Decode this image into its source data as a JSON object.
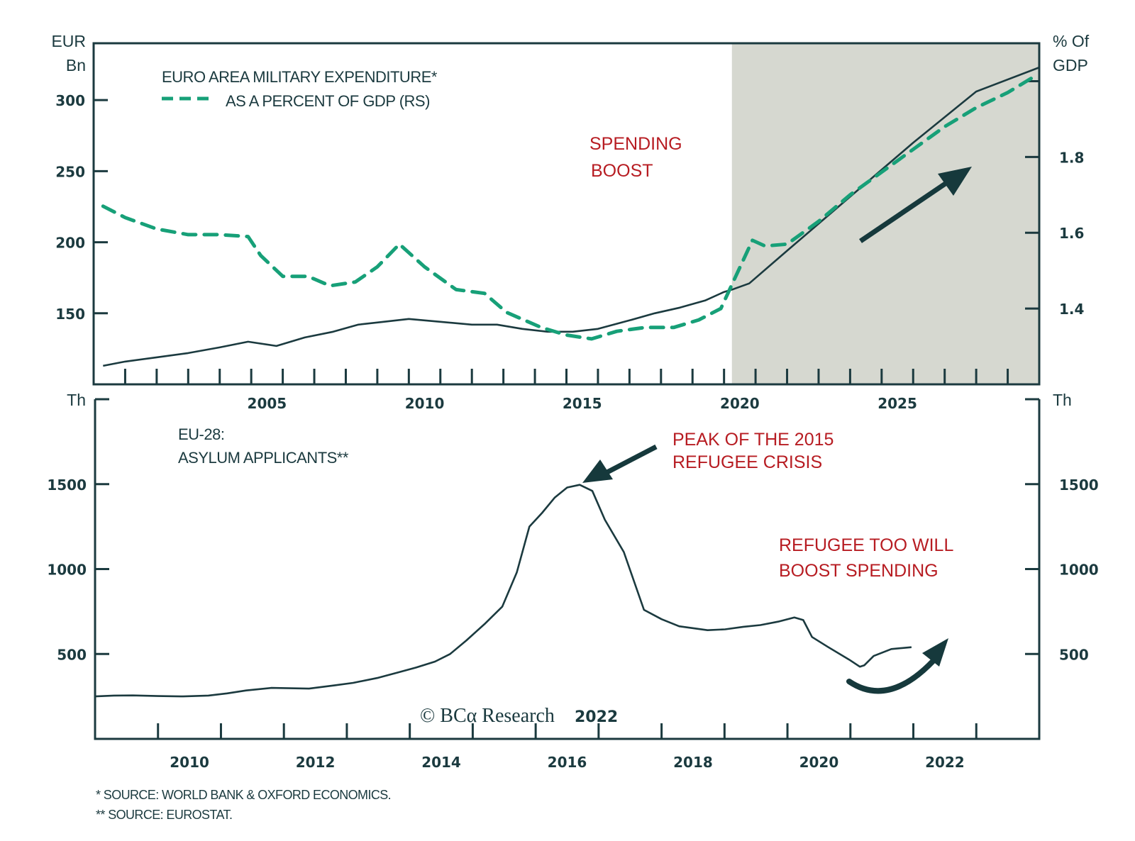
{
  "colors": {
    "axis": "#1b3a3f",
    "solid_line": "#1b3a3f",
    "dashed_line": "#17a078",
    "shade": "#d6d8d0",
    "annotation": "#b71c22"
  },
  "chart_data": [
    {
      "type": "line",
      "title": "EURO AREA MILITARY EXPENDITURE*",
      "left_axis_unit": [
        "EUR",
        "Bn"
      ],
      "right_axis_unit": [
        "% Of",
        "GDP"
      ],
      "xlim": [
        2000,
        2030
      ],
      "ylim_left": [
        100,
        340
      ],
      "ylim_right": [
        1.2,
        2.1
      ],
      "x_tick_labels": [
        "2005",
        "2010",
        "2015",
        "2020",
        "2025"
      ],
      "y_left_ticks": [
        150,
        200,
        250,
        300
      ],
      "y_left_tick_labels": [
        "150",
        "200",
        "250",
        "300"
      ],
      "y_right_ticks": [
        1.4,
        1.6,
        1.8,
        2.0
      ],
      "y_right_tick_labels": [
        "1.4",
        "1.6",
        "1.8",
        ""
      ],
      "shaded_region": [
        2020.25,
        2030
      ],
      "legend": {
        "solid": "EURO AREA MILITARY EXPENDITURE*",
        "dashed": "AS A PERCENT OF GDP (RS)",
        "placement": "top-left"
      },
      "annotations": [
        {
          "text": [
            "SPENDING",
            "BOOST"
          ]
        }
      ],
      "series": [
        {
          "name": "EURO AREA MILITARY EXPENDITURE*",
          "axis": "left",
          "style": "solid",
          "x": [
            2000.3,
            2001.0,
            2002.0,
            2003.0,
            2004.0,
            2004.9,
            2005.8,
            2006.7,
            2007.6,
            2008.4,
            2009.2,
            2010.0,
            2011.0,
            2012.0,
            2012.8,
            2013.6,
            2014.4,
            2015.2,
            2016.0,
            2017.0,
            2017.8,
            2018.6,
            2019.4,
            2020.0,
            2020.3,
            2020.8,
            2022.0,
            2024.0,
            2026.0,
            2028.0,
            2030.0
          ],
          "values": [
            113,
            116,
            119,
            122,
            126,
            130,
            127,
            133,
            137,
            142,
            144,
            146,
            144,
            142,
            142,
            139,
            137,
            137,
            139,
            145,
            150,
            154,
            159,
            165,
            167,
            171,
            194,
            232,
            270,
            306,
            323
          ]
        },
        {
          "name": "AS A PERCENT OF GDP (RS)",
          "axis": "right",
          "style": "dashed",
          "x": [
            2000.3,
            2001.0,
            2002.0,
            2003.0,
            2004.0,
            2004.9,
            2005.3,
            2006.0,
            2006.8,
            2007.5,
            2008.3,
            2009.0,
            2009.7,
            2010.5,
            2011.5,
            2012.4,
            2013.1,
            2014.2,
            2015.0,
            2015.8,
            2016.6,
            2017.5,
            2018.4,
            2019.2,
            2019.9,
            2020.4,
            2020.9,
            2021.3,
            2022.0,
            2023.0,
            2024.0,
            2025.0,
            2026.0,
            2027.0,
            2028.0,
            2029.0,
            2029.8
          ],
          "values": [
            1.67,
            1.64,
            1.61,
            1.595,
            1.595,
            1.59,
            1.54,
            1.485,
            1.485,
            1.46,
            1.47,
            1.51,
            1.57,
            1.51,
            1.45,
            1.44,
            1.39,
            1.35,
            1.33,
            1.32,
            1.34,
            1.35,
            1.35,
            1.37,
            1.4,
            1.49,
            1.58,
            1.565,
            1.57,
            1.63,
            1.7,
            1.76,
            1.82,
            1.88,
            1.93,
            1.97,
            2.01
          ]
        }
      ]
    },
    {
      "type": "line",
      "title": "EU-28: ASYLUM APPLICANTS**",
      "left_axis_unit": [
        "Th"
      ],
      "right_axis_unit": [
        "Th"
      ],
      "xlim": [
        2009,
        2024
      ],
      "ylim": [
        0,
        2000
      ],
      "x_tick_labels": [
        "2010",
        "2012",
        "2014",
        "2016",
        "2018",
        "2020",
        "2022"
      ],
      "y_ticks": [
        500,
        1000,
        1500,
        2000
      ],
      "y_tick_labels": [
        "500",
        "1000",
        "1500",
        ""
      ],
      "annotations": [
        {
          "text": [
            "PEAK OF THE 2015",
            "REFUGEE CRISIS"
          ]
        },
        {
          "text": [
            "REFUGEE TOO WILL",
            "BOOST SPENDING"
          ]
        }
      ],
      "series": [
        {
          "name": "EU-28: ASYLUM APPLICANTS**",
          "style": "solid",
          "x": [
            2009.0,
            2009.3,
            2009.6,
            2010.0,
            2010.4,
            2010.8,
            2011.1,
            2011.4,
            2011.8,
            2012.1,
            2012.4,
            2012.8,
            2013.1,
            2013.5,
            2013.8,
            2014.1,
            2014.4,
            2014.64,
            2014.9,
            2015.2,
            2015.47,
            2015.7,
            2015.9,
            2016.1,
            2016.3,
            2016.5,
            2016.7,
            2016.9,
            2017.1,
            2017.4,
            2017.72,
            2018.0,
            2018.28,
            2018.73,
            2019.01,
            2019.3,
            2019.57,
            2019.85,
            2020.11,
            2020.25,
            2020.39,
            2020.64,
            2020.98,
            2021.15,
            2021.22,
            2021.37,
            2021.65,
            2021.97
          ],
          "values": [
            250,
            255,
            256,
            252,
            250,
            255,
            268,
            285,
            300,
            298,
            296,
            315,
            330,
            360,
            390,
            420,
            455,
            500,
            580,
            680,
            779,
            980,
            1250,
            1330,
            1420,
            1480,
            1496,
            1460,
            1290,
            1100,
            760,
            705,
            663,
            640,
            645,
            660,
            670,
            690,
            715,
            700,
            600,
            542,
            467,
            425,
            433,
            488,
            529,
            540
          ]
        }
      ]
    }
  ],
  "footnotes": [
    "*  SOURCE: WORLD BANK & OXFORD ECONOMICS.",
    "** SOURCE: EUROSTAT."
  ],
  "copyright": {
    "symbol": "©",
    "brand": "BCα Research",
    "year": "2022"
  }
}
